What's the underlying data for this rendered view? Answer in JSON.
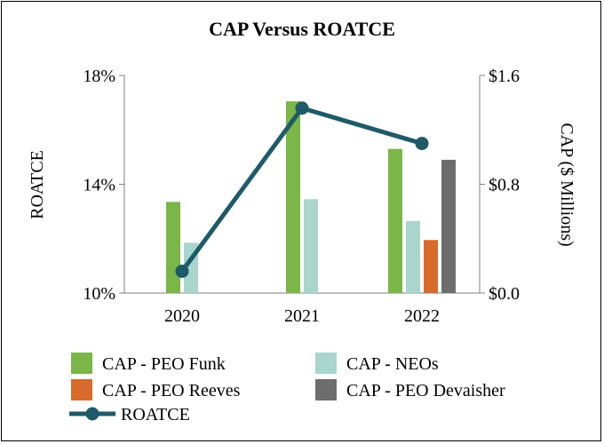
{
  "chart_data": {
    "type": "bar+line",
    "title": "CAP Versus ROATCE",
    "categories": [
      "2020",
      "2021",
      "2022"
    ],
    "left_axis": {
      "label": "ROATCE",
      "range": [
        10,
        18
      ],
      "ticks": [
        "10%",
        "14%",
        "18%"
      ],
      "tick_values": [
        10,
        14,
        18
      ]
    },
    "right_axis": {
      "label": "CAP ($ Millions)",
      "range": [
        0,
        1.6
      ],
      "ticks": [
        "$0.0",
        "$0.8",
        "$1.6"
      ],
      "tick_values": [
        0,
        0.8,
        1.6
      ]
    },
    "bar_series": [
      {
        "name": "CAP - PEO Funk",
        "color": "#7ab648",
        "values": [
          0.67,
          1.41,
          1.06
        ]
      },
      {
        "name": "CAP - NEOs",
        "color": "#a8d5cc",
        "values": [
          0.37,
          0.69,
          0.53
        ]
      },
      {
        "name": "CAP - PEO Reeves",
        "color": "#d86a2c",
        "values": [
          null,
          null,
          0.39
        ]
      },
      {
        "name": "CAP - PEO Devaisher",
        "color": "#6d6d6d",
        "values": [
          null,
          null,
          0.98
        ]
      }
    ],
    "line_series": {
      "name": "ROATCE",
      "color": "#1e5a68",
      "values": [
        10.8,
        16.8,
        15.5
      ]
    },
    "legend": [
      "CAP - PEO Funk",
      "CAP - NEOs",
      "CAP - PEO Reeves",
      "CAP - PEO Devaisher",
      "ROATCE"
    ]
  }
}
